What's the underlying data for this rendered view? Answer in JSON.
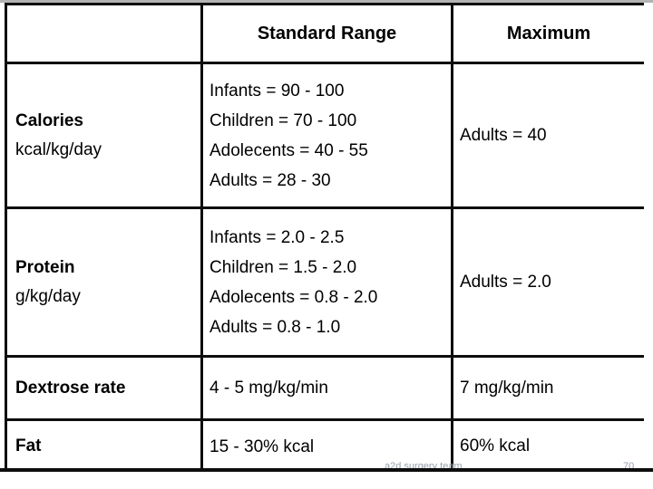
{
  "table": {
    "headers": [
      "",
      "Standard Range",
      "Maximum"
    ],
    "rows": [
      {
        "label": "Calories",
        "sublabel": "kcal/kg/day",
        "standard_range": [
          "Infants = 90 - 100",
          "Children = 70 - 100",
          "Adolecents = 40 - 55",
          "Adults = 28 - 30"
        ],
        "maximum": "Adults = 40"
      },
      {
        "label": "Protein",
        "sublabel": "g/kg/day",
        "standard_range": [
          "Infants = 2.0 - 2.5",
          "Children = 1.5 - 2.0",
          "Adolecents = 0.8 - 2.0",
          "Adults = 0.8 - 1.0"
        ],
        "maximum": "Adults = 2.0"
      },
      {
        "label": "Dextrose rate",
        "sublabel": "",
        "standard_range": [
          "4 - 5 mg/kg/min"
        ],
        "maximum": "7 mg/kg/min"
      },
      {
        "label": "Fat",
        "sublabel": "",
        "standard_range": [
          "15 - 30% kcal"
        ],
        "maximum": "60% kcal"
      }
    ]
  },
  "footer": {
    "team": "a2d surgery team",
    "page_number": "70"
  },
  "colors": {
    "border": "#0d0d0d",
    "background": "#ffffff",
    "footer_text": "#97a0ac",
    "top_strip": "#b3b3b3"
  }
}
